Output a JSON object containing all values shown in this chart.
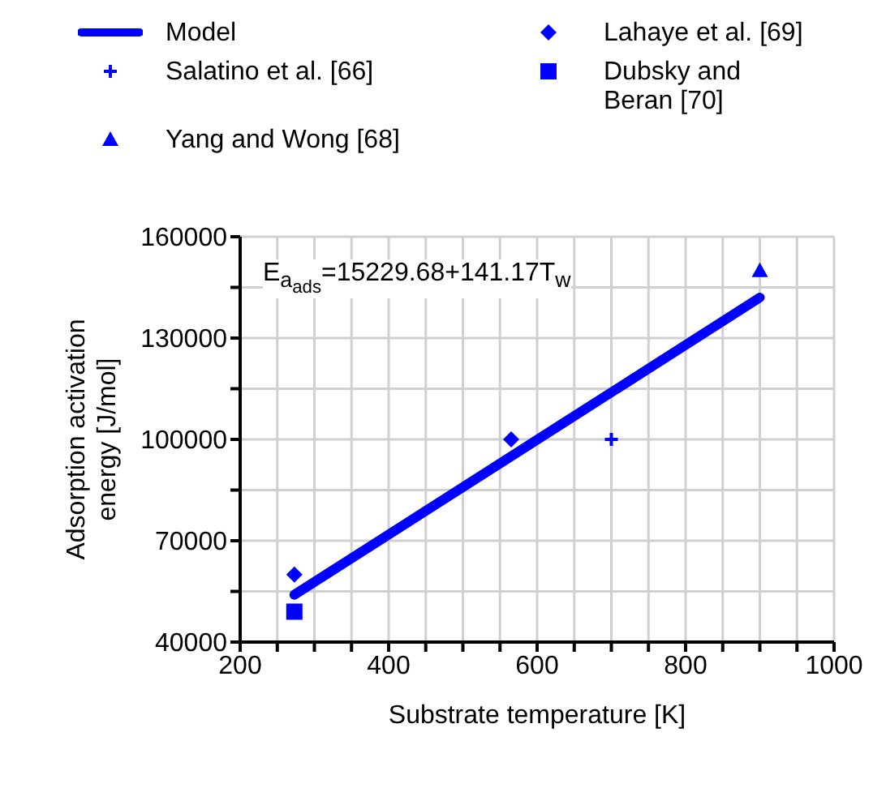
{
  "chart_data": {
    "type": "scatter",
    "xlabel": "Substrate temperature [K]",
    "ylabel": "Adsorption activation energy [J/mol]",
    "xlim": [
      200,
      1000
    ],
    "xticks": [
      200,
      {
        "value": 250,
        "label": null
      },
      {
        "value": 300,
        "label": null
      },
      {
        "value": 350,
        "label": null
      },
      400,
      {
        "value": 450,
        "label": null
      },
      {
        "value": 500,
        "label": null
      },
      {
        "value": 550,
        "label": null
      },
      600,
      {
        "value": 650,
        "label": null
      },
      {
        "value": 700,
        "label": null
      },
      {
        "value": 750,
        "label": null
      },
      800,
      {
        "value": 850,
        "label": null
      },
      {
        "value": 900,
        "label": null
      },
      {
        "value": 950,
        "label": null
      },
      1000
    ],
    "ylim": [
      40000,
      160000
    ],
    "yticks": [
      40000,
      {
        "value": 55000,
        "label": null
      },
      70000,
      {
        "value": 85000,
        "label": null
      },
      100000,
      {
        "value": 115000,
        "label": null
      },
      130000,
      {
        "value": 145000,
        "label": null
      },
      160000
    ],
    "grid": true,
    "legend": "top",
    "annotations": [
      "E$_{a}$$_{ads}$=15229.68+141.17T$_{w}$"
    ],
    "series": [
      {
        "name": "Model",
        "type": "line",
        "color": "#0000ff",
        "marker": "none",
        "x": [
          273,
          900
        ],
        "values": [
          54000,
          142000
        ]
      },
      {
        "name": "Salatino et al. [66]",
        "color": "#0000ff",
        "marker": "cross",
        "x": [
          700
        ],
        "values": [
          100000
        ]
      },
      {
        "name": "Yang and Wong [68]",
        "color": "#0000ff",
        "marker": "triangle",
        "x": [
          900
        ],
        "values": [
          150000
        ]
      },
      {
        "name": "Lahaye et al. [69]",
        "color": "#0000ff",
        "marker": "diamond",
        "x": [
          273,
          565
        ],
        "values": [
          60000,
          100000
        ]
      },
      {
        "name": "Dubsky and Beran [70]",
        "color": "#0000ff",
        "marker": "square",
        "x": [
          273
        ],
        "values": [
          49000
        ]
      }
    ]
  }
}
